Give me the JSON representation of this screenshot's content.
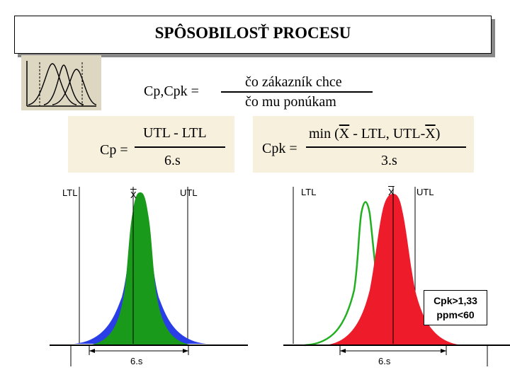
{
  "slide": {
    "title": "SPÔSOBILOSŤ PROCESU",
    "header_formula": {
      "lhs": "Cp,Cpk =",
      "numerator": "čo zákazník chce",
      "denominator": "čo mu ponúkam"
    },
    "cp_formula": {
      "lhs": "Cp =",
      "numerator": "UTL - LTL",
      "denominator": "6.s"
    },
    "cpk_formula": {
      "lhs": "Cpk =",
      "num_prefix": "min (",
      "num_x1": "X",
      "num_middle": " - LTL, UTL-",
      "num_x2": "X",
      "num_suffix": ")",
      "denominator": "3.s"
    },
    "left_chart": {
      "ltl_label": "LTL",
      "mean_label": "X",
      "utl_label": "UTL",
      "spread_label": "6.s",
      "colors": {
        "inner": "#1a9a1a",
        "outer": "#2a3ee8"
      }
    },
    "right_chart": {
      "ltl_label": "LTL",
      "mean_label": "X",
      "utl_label": "UTL",
      "spread_label": "6.s",
      "result_line1": "Cpk>1,33",
      "result_line2": "ppm<60",
      "colors": {
        "shifted": "#20b020",
        "main": "#ee1c2a"
      }
    }
  }
}
